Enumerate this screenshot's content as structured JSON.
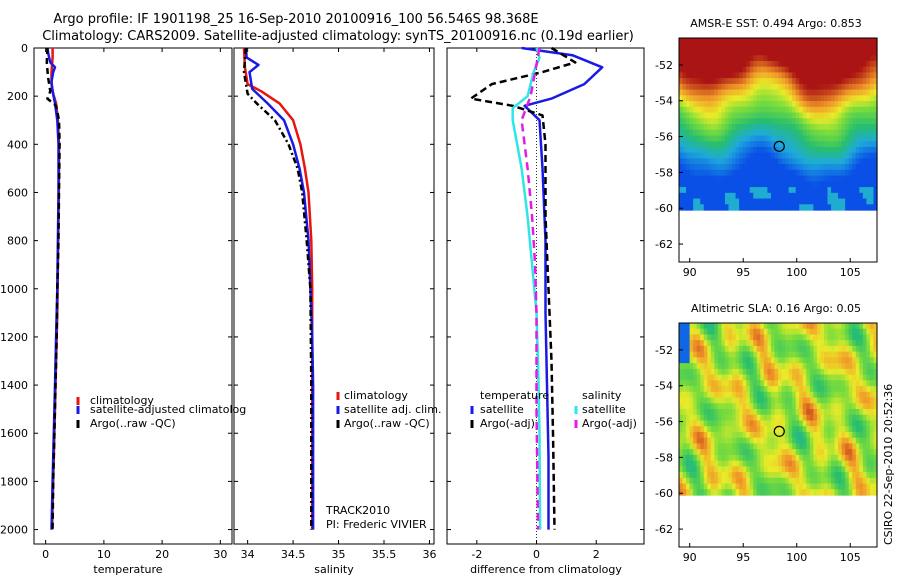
{
  "figure": {
    "title_line1": "Argo profile: IF 1901198_25 16-Sep-2010 20100916_100 56.546S 98.368E",
    "title_line2": "Climatology: CARS2009. Satellite-adjusted climatology: synTS_20100916.nc (0.19d earlier)",
    "credit": "CSIRO 22-Sep-2010 20:52:36",
    "colors": {
      "climatology": "#e8140f",
      "satellite": "#1a1ae6",
      "argo": "#000000",
      "satellite_diff_s": "#2ee6e6",
      "argo_diff_s": "#e61ae6"
    }
  },
  "chart_data": [
    {
      "type": "line",
      "id": "temperature",
      "xlabel": "temperature",
      "ylabel": "",
      "xlim": [
        -2,
        32
      ],
      "ylim": [
        2060,
        0
      ],
      "xticks": [
        0,
        10,
        20,
        30
      ],
      "yticks": [
        0,
        200,
        400,
        600,
        800,
        1000,
        1200,
        1400,
        1600,
        1800,
        2000
      ],
      "legend": [
        "climatology",
        "satellite-adjusted climatolog",
        "Argo(..raw -QC)"
      ],
      "series": [
        {
          "name": "climatology",
          "color": "#e8140f",
          "dash": "",
          "points": [
            [
              1.2,
              0
            ],
            [
              1.2,
              40
            ],
            [
              1.0,
              100
            ],
            [
              1.0,
              150
            ],
            [
              1.3,
              190
            ],
            [
              1.8,
              230
            ],
            [
              2.1,
              300
            ],
            [
              2.3,
              400
            ],
            [
              2.3,
              500
            ],
            [
              2.2,
              700
            ],
            [
              2.1,
              900
            ],
            [
              2.0,
              1100
            ],
            [
              1.8,
              1300
            ],
            [
              1.6,
              1500
            ],
            [
              1.4,
              1700
            ],
            [
              1.2,
              1900
            ],
            [
              1.1,
              2000
            ]
          ]
        },
        {
          "name": "satellite-adjusted climatology",
          "color": "#1a1ae6",
          "dash": "",
          "points": [
            [
              0.3,
              0
            ],
            [
              0.5,
              30
            ],
            [
              0.8,
              60
            ],
            [
              1.6,
              80
            ],
            [
              1.3,
              100
            ],
            [
              1.0,
              140
            ],
            [
              1.2,
              180
            ],
            [
              1.6,
              230
            ],
            [
              2.0,
              300
            ],
            [
              2.2,
              400
            ],
            [
              2.2,
              600
            ],
            [
              2.1,
              800
            ],
            [
              2.0,
              1000
            ],
            [
              1.8,
              1200
            ],
            [
              1.6,
              1400
            ],
            [
              1.4,
              1600
            ],
            [
              1.2,
              1800
            ],
            [
              1.0,
              2000
            ]
          ]
        },
        {
          "name": "Argo(..raw -QC)",
          "color": "#000000",
          "dash": "6,4",
          "points": [
            [
              0.3,
              0
            ],
            [
              0.2,
              60
            ],
            [
              0.4,
              120
            ],
            [
              0.8,
              180
            ],
            [
              0.3,
              210
            ],
            [
              1.8,
              240
            ],
            [
              2.3,
              300
            ],
            [
              2.4,
              400
            ],
            [
              2.3,
              600
            ],
            [
              2.2,
              800
            ],
            [
              2.0,
              1000
            ],
            [
              1.9,
              1200
            ],
            [
              1.7,
              1400
            ],
            [
              1.5,
              1600
            ],
            [
              1.3,
              1800
            ],
            [
              1.2,
              2000
            ]
          ]
        }
      ]
    },
    {
      "type": "line",
      "id": "salinity",
      "xlabel": "salinity",
      "ylabel": "",
      "xlim": [
        33.85,
        36.05
      ],
      "ylim": [
        2060,
        0
      ],
      "xticks": [
        34,
        34.5,
        35,
        35.5,
        36
      ],
      "yticks": [
        0,
        200,
        400,
        600,
        800,
        1000,
        1200,
        1400,
        1600,
        1800,
        2000
      ],
      "legend": [
        "climatology",
        "satellite adj. clim.",
        "Argo(..raw -QC)"
      ],
      "annotation": [
        "TRACK2010",
        "PI: Frederic VIVIER"
      ],
      "series": [
        {
          "name": "climatology",
          "color": "#e8140f",
          "dash": "",
          "points": [
            [
              33.96,
              0
            ],
            [
              33.97,
              80
            ],
            [
              34.0,
              150
            ],
            [
              34.15,
              180
            ],
            [
              34.35,
              230
            ],
            [
              34.5,
              300
            ],
            [
              34.58,
              400
            ],
            [
              34.63,
              500
            ],
            [
              34.67,
              600
            ],
            [
              34.7,
              800
            ],
            [
              34.71,
              1000
            ],
            [
              34.71,
              1400
            ],
            [
              34.71,
              2000
            ]
          ]
        },
        {
          "name": "satellite adj. clim.",
          "color": "#1a1ae6",
          "dash": "",
          "points": [
            [
              33.98,
              0
            ],
            [
              33.99,
              40
            ],
            [
              34.12,
              70
            ],
            [
              34.02,
              100
            ],
            [
              34.05,
              170
            ],
            [
              34.22,
              230
            ],
            [
              34.4,
              300
            ],
            [
              34.5,
              400
            ],
            [
              34.57,
              500
            ],
            [
              34.62,
              600
            ],
            [
              34.67,
              800
            ],
            [
              34.69,
              1000
            ],
            [
              34.71,
              1200
            ],
            [
              34.72,
              1400
            ],
            [
              34.72,
              2000
            ]
          ]
        },
        {
          "name": "Argo(..raw -QC)",
          "color": "#000000",
          "dash": "6,3,2,3",
          "points": [
            [
              33.98,
              0
            ],
            [
              33.96,
              100
            ],
            [
              34.0,
              190
            ],
            [
              34.1,
              230
            ],
            [
              34.3,
              300
            ],
            [
              34.45,
              400
            ],
            [
              34.55,
              500
            ],
            [
              34.6,
              600
            ],
            [
              34.65,
              800
            ],
            [
              34.69,
              1000
            ],
            [
              34.7,
              1400
            ],
            [
              34.7,
              2000
            ]
          ]
        }
      ]
    },
    {
      "type": "line",
      "id": "difference",
      "xlabel": "difference from climatology",
      "ylabel": "",
      "xlim": [
        -3.0,
        3.6
      ],
      "ylim": [
        2060,
        0
      ],
      "xticks": [
        -2,
        0,
        2
      ],
      "yticks": [
        0,
        200,
        400,
        600,
        800,
        1000,
        1200,
        1400,
        1600,
        1800,
        2000
      ],
      "legend_temperature": [
        "temperature",
        "satellite",
        "Argo(-adj)"
      ],
      "legend_salinity": [
        "salinity",
        "satellite",
        "Argo(-adj)"
      ],
      "series": [
        {
          "name": "temperature satellite",
          "color": "#1a1ae6",
          "dash": "",
          "points": [
            [
              -0.5,
              0
            ],
            [
              1.2,
              30
            ],
            [
              2.2,
              80
            ],
            [
              1.6,
              150
            ],
            [
              0.5,
              210
            ],
            [
              -0.4,
              240
            ],
            [
              0.1,
              300
            ],
            [
              0.2,
              500
            ],
            [
              0.3,
              800
            ],
            [
              0.3,
              1100
            ],
            [
              0.35,
              1400
            ],
            [
              0.4,
              1700
            ],
            [
              0.4,
              2000
            ]
          ]
        },
        {
          "name": "temperature Argo(-adj)",
          "color": "#000000",
          "dash": "7,4",
          "points": [
            [
              0.5,
              0
            ],
            [
              1.3,
              60
            ],
            [
              0.2,
              100
            ],
            [
              -1.5,
              150
            ],
            [
              -2.2,
              210
            ],
            [
              -0.8,
              240
            ],
            [
              0.2,
              280
            ],
            [
              0.3,
              400
            ],
            [
              0.3,
              700
            ],
            [
              0.4,
              1000
            ],
            [
              0.5,
              1300
            ],
            [
              0.55,
              1600
            ],
            [
              0.6,
              2000
            ]
          ]
        },
        {
          "name": "salinity satellite",
          "color": "#2ee6e6",
          "dash": "",
          "points": [
            [
              0.0,
              0
            ],
            [
              0.1,
              40
            ],
            [
              -0.1,
              100
            ],
            [
              -0.3,
              200
            ],
            [
              -0.8,
              250
            ],
            [
              -0.8,
              300
            ],
            [
              -0.5,
              500
            ],
            [
              -0.3,
              700
            ],
            [
              -0.15,
              900
            ],
            [
              0.0,
              1100
            ],
            [
              0.05,
              1300
            ],
            [
              0.1,
              1600
            ],
            [
              0.12,
              2000
            ]
          ]
        },
        {
          "name": "salinity Argo(-adj)",
          "color": "#e61ae6",
          "dash": "8,5",
          "points": [
            [
              0.1,
              0
            ],
            [
              -0.05,
              100
            ],
            [
              -0.2,
              200
            ],
            [
              -0.5,
              300
            ],
            [
              -0.3,
              500
            ],
            [
              -0.15,
              700
            ],
            [
              -0.05,
              900
            ],
            [
              0.0,
              1100
            ],
            [
              0.0,
              1500
            ],
            [
              0.05,
              2000
            ]
          ]
        }
      ]
    },
    {
      "type": "heatmap",
      "id": "amsre-sst",
      "title": "AMSR-E SST: 0.494  Argo: 0.853",
      "xlim": [
        89,
        107.5
      ],
      "ylim": [
        -63,
        -50.5
      ],
      "xticks": [
        90,
        95,
        100,
        105
      ],
      "yticks": [
        -52,
        -54,
        -56,
        -58,
        -60,
        -62
      ],
      "argo_position": [
        98.368,
        -56.546
      ]
    },
    {
      "type": "heatmap",
      "id": "altimetric-sla",
      "title": "Altimetric SLA: 0.16  Argo: 0.05",
      "xlim": [
        89,
        107.5
      ],
      "ylim": [
        -63,
        -50.5
      ],
      "xticks": [
        90,
        95,
        100,
        105
      ],
      "yticks": [
        -52,
        -54,
        -56,
        -58,
        -60,
        -62
      ],
      "argo_position": [
        98.368,
        -56.546
      ]
    }
  ]
}
